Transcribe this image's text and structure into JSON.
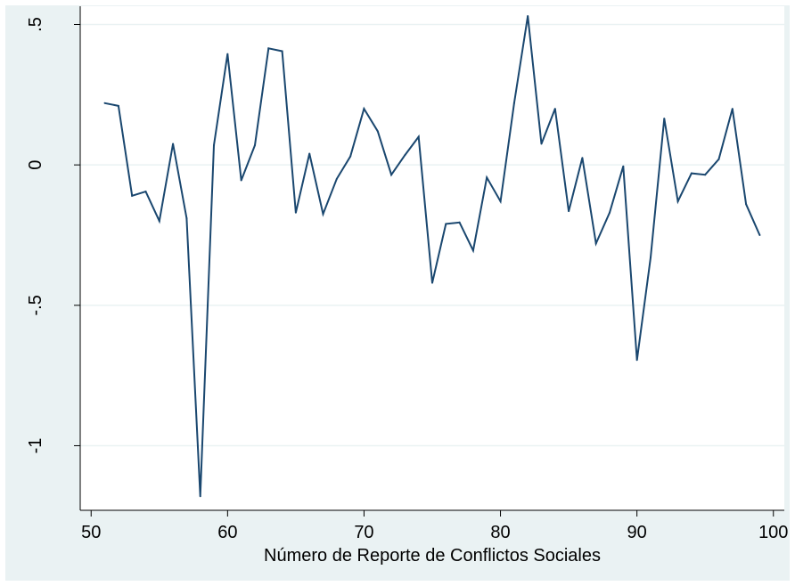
{
  "chart_data": {
    "type": "line",
    "title": "",
    "xlabel": "Número de Reporte de Conflictos Sociales",
    "ylabel": "",
    "xlim": [
      49.2,
      100.8
    ],
    "ylim": [
      -1.23,
      0.565
    ],
    "x_ticks": [
      50,
      60,
      70,
      80,
      90,
      100
    ],
    "x_tick_labels": [
      "50",
      "60",
      "70",
      "80",
      "90",
      "100"
    ],
    "y_ticks": [
      0.5,
      0,
      -0.5,
      -1
    ],
    "y_tick_labels": [
      ".5",
      "0",
      "-.5",
      "-1"
    ],
    "grid": true,
    "legend": "none",
    "colors": {
      "background": "#eaf2f3",
      "plot_area": "#ffffff",
      "gridline": "#eaf2f3",
      "series": "#1a476f",
      "axis": "#000000"
    },
    "series": [
      {
        "x": [
          51,
          52,
          53,
          54,
          55,
          56,
          57,
          58,
          59,
          60,
          61,
          62,
          63,
          64,
          65,
          66,
          67,
          68,
          69,
          70,
          71,
          72,
          73,
          74,
          75,
          76,
          77,
          78,
          79,
          80,
          81,
          82,
          83,
          84,
          85,
          86,
          87,
          88,
          89,
          90,
          91,
          92,
          93,
          94,
          95,
          96,
          97,
          98,
          99
        ],
        "values": [
          0.22,
          0.21,
          -0.11,
          -0.095,
          -0.2,
          0.075,
          -0.19,
          -1.18,
          0.07,
          0.395,
          -0.055,
          0.07,
          0.415,
          0.405,
          -0.17,
          0.04,
          -0.175,
          -0.05,
          0.03,
          0.2,
          0.12,
          -0.035,
          0.035,
          0.1,
          -0.42,
          -0.21,
          -0.205,
          -0.305,
          -0.045,
          -0.13,
          0.22,
          0.53,
          0.075,
          0.2,
          -0.165,
          0.025,
          -0.28,
          -0.17,
          -0.005,
          -0.695,
          -0.33,
          0.165,
          -0.13,
          -0.03,
          -0.035,
          0.02,
          0.2,
          -0.14,
          -0.25
        ]
      }
    ]
  }
}
